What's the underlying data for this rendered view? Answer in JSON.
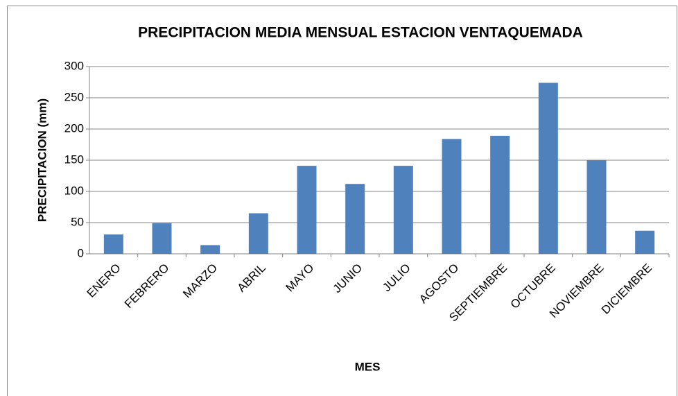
{
  "chart_data": {
    "type": "bar",
    "title": "PRECIPITACION MEDIA MENSUAL ESTACION VENTAQUEMADA",
    "x_label": "MES",
    "y_label": "PRECIPITACION (mm)",
    "categories": [
      "ENERO",
      "FEBRERO",
      "MARZO",
      "ABRIL",
      "MAYO",
      "JUNIO",
      "JULIO",
      "AGOSTO",
      "SEPTIEMBRE",
      "OCTUBRE",
      "NOVIEMBRE",
      "DICIEMBRE"
    ],
    "values": [
      31,
      49,
      14,
      65,
      141,
      112,
      141,
      184,
      189,
      274,
      150,
      37
    ],
    "color": "#4f81bd",
    "ylim": [
      0,
      300
    ],
    "yticks": [
      0,
      50,
      100,
      150,
      200,
      250,
      300
    ],
    "grid": true
  }
}
